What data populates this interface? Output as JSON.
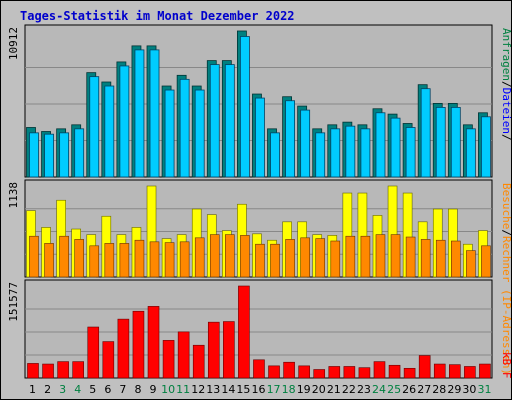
{
  "title": "Tages-Statistik im Monat Dezember 2022",
  "colors": {
    "background": "#c0c0c0",
    "plot_bg": "#b8b8b8",
    "border": "#000000",
    "title": "#0000cc",
    "anfragen": "#008080",
    "dateien": "#00ccff",
    "rechner": "#ff8800",
    "besuche": "#ffff00",
    "kb": "#ff0000",
    "weekday_label": "#000000",
    "weekend_label": "#008040",
    "anfragen_side_label": "#008040",
    "dateien_side_label": "#0000ff",
    "rechner_side_label": "#ff8800",
    "kb_side_label": "#ff0000"
  },
  "side_labels": {
    "anfragen": "Anfragen",
    "dateien": "Dateien",
    "separator": "/",
    "rechner": "Rechner (IP-Adressen)",
    "besuche": "Besuche",
    "kb_f": "kB F"
  },
  "chart_data": [
    {
      "type": "bar",
      "panel": "top",
      "ymax_label": "10912",
      "ylim": [
        0,
        10912
      ],
      "grid": true,
      "categories": [
        "1",
        "2",
        "3",
        "4",
        "5",
        "6",
        "7",
        "8",
        "9",
        "10",
        "11",
        "12",
        "13",
        "14",
        "15",
        "16",
        "17",
        "18",
        "19",
        "20",
        "21",
        "22",
        "23",
        "24",
        "25",
        "26",
        "27",
        "28",
        "29",
        "30",
        "31"
      ],
      "weekend_days": [
        3,
        4,
        10,
        11,
        17,
        18,
        24,
        25,
        31
      ],
      "series": [
        {
          "name": "Anfragen",
          "values": [
            3700,
            3400,
            3600,
            3900,
            7800,
            7100,
            8600,
            9800,
            9800,
            6800,
            7600,
            6800,
            8700,
            8700,
            10912,
            6200,
            3600,
            6000,
            5300,
            3600,
            3900,
            4100,
            3900,
            5100,
            4700,
            4000,
            6900,
            5500,
            5500,
            3900,
            4800
          ]
        },
        {
          "name": "Dateien",
          "values": [
            3300,
            3200,
            3300,
            3600,
            7500,
            6800,
            8300,
            9500,
            9500,
            6500,
            7300,
            6500,
            8400,
            8400,
            10500,
            5900,
            3300,
            5700,
            5000,
            3300,
            3600,
            3800,
            3600,
            4800,
            4400,
            3700,
            6600,
            5200,
            5200,
            3600,
            4500
          ]
        }
      ]
    },
    {
      "type": "bar",
      "panel": "middle",
      "ymax_label": "1138",
      "ylim": [
        0,
        1138
      ],
      "grid": true,
      "categories": [
        "1",
        "2",
        "3",
        "4",
        "5",
        "6",
        "7",
        "8",
        "9",
        "10",
        "11",
        "12",
        "13",
        "14",
        "15",
        "16",
        "17",
        "18",
        "19",
        "20",
        "21",
        "22",
        "23",
        "24",
        "25",
        "26",
        "27",
        "28",
        "29",
        "30",
        "31"
      ],
      "series": [
        {
          "name": "Besuche",
          "values": [
            830,
            620,
            960,
            600,
            530,
            760,
            530,
            620,
            1138,
            480,
            530,
            850,
            780,
            580,
            910,
            540,
            460,
            690,
            690,
            530,
            520,
            1050,
            1050,
            770,
            1138,
            1050,
            690,
            850,
            850,
            410,
            580
          ]
        },
        {
          "name": "Rechner",
          "values": [
            510,
            420,
            510,
            470,
            390,
            420,
            420,
            460,
            440,
            430,
            440,
            490,
            530,
            530,
            520,
            410,
            410,
            470,
            490,
            480,
            450,
            510,
            510,
            530,
            530,
            500,
            470,
            460,
            450,
            330,
            390
          ]
        }
      ]
    },
    {
      "type": "bar",
      "panel": "bottom",
      "ymax_label": "151577",
      "ylim": [
        0,
        151577
      ],
      "grid": true,
      "categories": [
        "1",
        "2",
        "3",
        "4",
        "5",
        "6",
        "7",
        "8",
        "9",
        "10",
        "11",
        "12",
        "13",
        "14",
        "15",
        "16",
        "17",
        "18",
        "19",
        "20",
        "21",
        "22",
        "23",
        "24",
        "25",
        "26",
        "27",
        "28",
        "29",
        "30",
        "31"
      ],
      "series": [
        {
          "name": "kB F",
          "values": [
            24000,
            23000,
            27000,
            27000,
            84000,
            60000,
            97000,
            110000,
            118000,
            62000,
            76000,
            54000,
            92000,
            93000,
            151577,
            30000,
            20000,
            26000,
            20000,
            14000,
            19000,
            19000,
            17000,
            27000,
            21000,
            16000,
            37000,
            23000,
            22000,
            19000,
            23000
          ]
        }
      ]
    }
  ]
}
